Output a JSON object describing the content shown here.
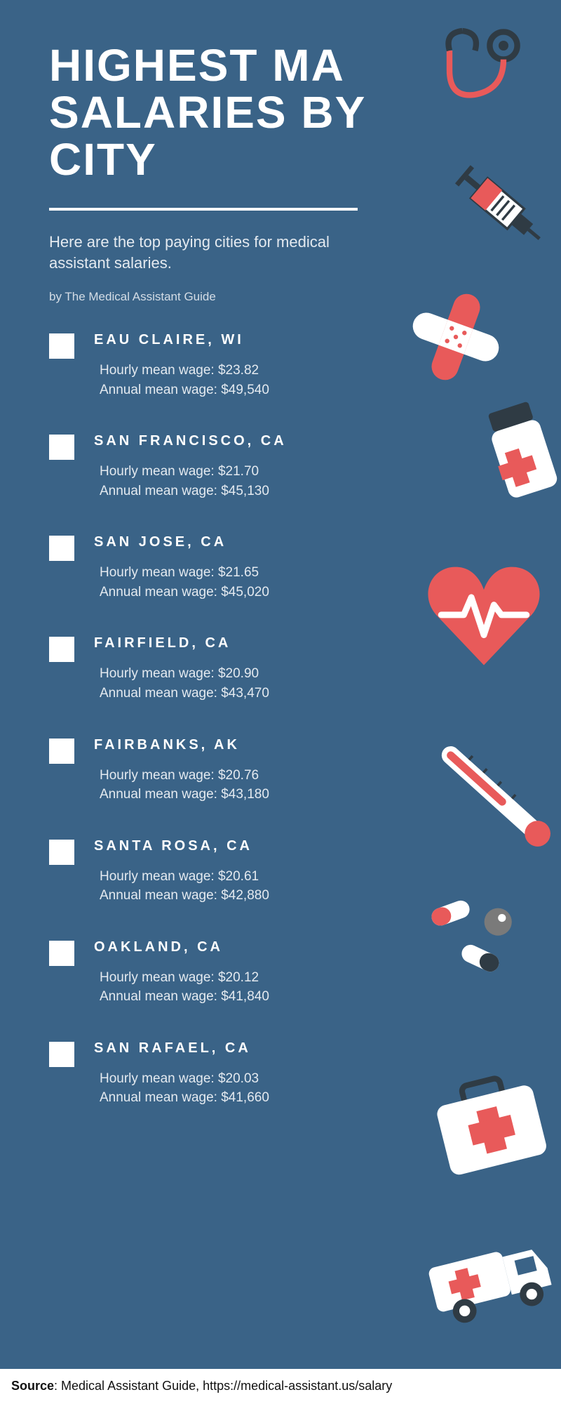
{
  "colors": {
    "background": "#3a6387",
    "text_white": "#ffffff",
    "text_light": "#e4eaf0",
    "accent_red": "#e85a5a",
    "accent_dark": "#2f3b44",
    "accent_gray": "#7a7a7a"
  },
  "title": "HIGHEST MA SALARIES BY CITY",
  "subtitle": "Here are the top paying cities for medical assistant salaries.",
  "byline": "by The Medical Assistant Guide",
  "hourly_label": "Hourly mean wage: ",
  "annual_label": "Annual mean wage: ",
  "cities": [
    {
      "name": "EAU CLAIRE, WI",
      "hourly": "$23.82",
      "annual": "$49,540"
    },
    {
      "name": "SAN FRANCISCO, CA",
      "hourly": "$21.70",
      "annual": "$45,130"
    },
    {
      "name": "SAN JOSE, CA",
      "hourly": "$21.65",
      "annual": "$45,020"
    },
    {
      "name": "FAIRFIELD, CA",
      "hourly": "$20.90",
      "annual": "$43,470"
    },
    {
      "name": "FAIRBANKS, AK",
      "hourly": "$20.76",
      "annual": "$43,180"
    },
    {
      "name": "SANTA ROSA, CA",
      "hourly": "$20.61",
      "annual": "$42,880"
    },
    {
      "name": "OAKLAND, CA",
      "hourly": "$20.12",
      "annual": "$41,840"
    },
    {
      "name": "SAN RAFAEL, CA",
      "hourly": "$20.03",
      "annual": "$41,660"
    }
  ],
  "source_label": "Source",
  "source_text": ": Medical Assistant Guide, https://medical-assistant.us/salary"
}
